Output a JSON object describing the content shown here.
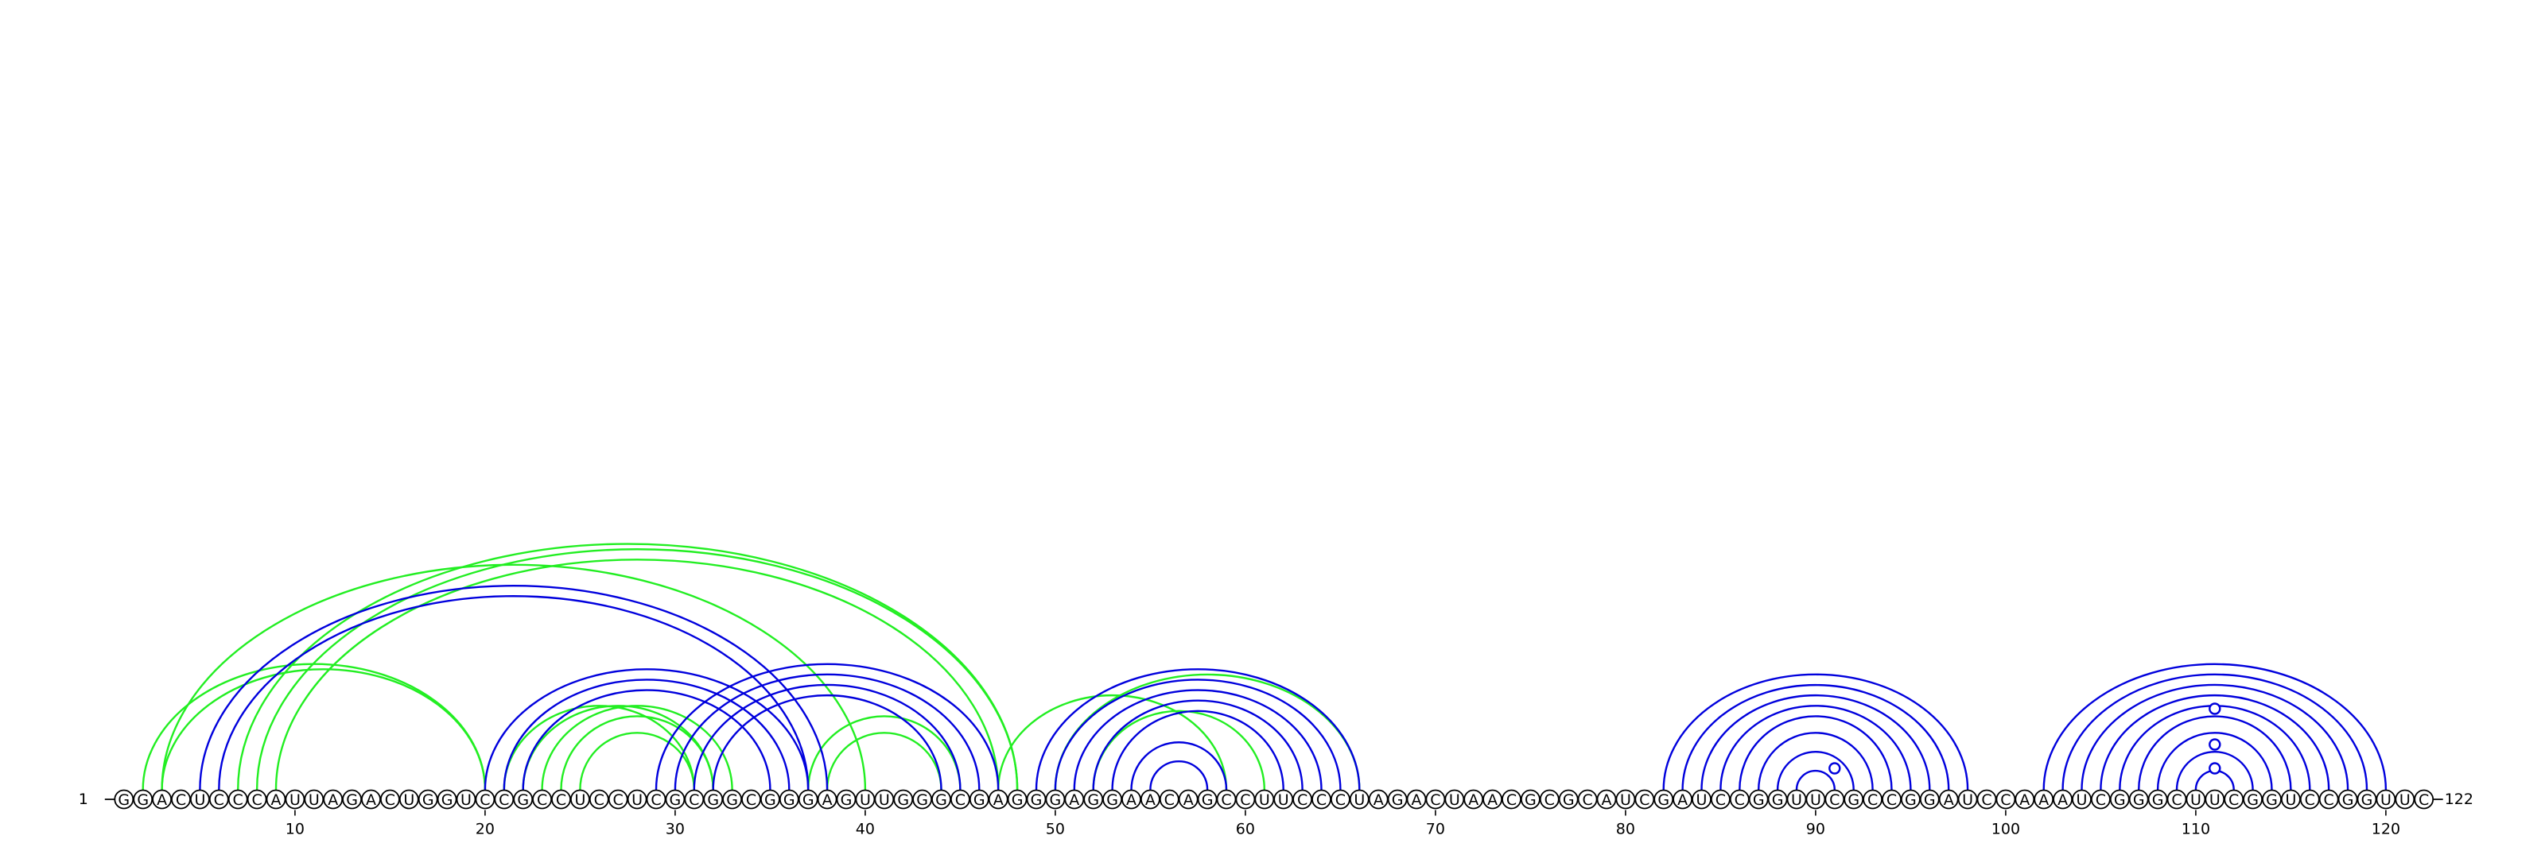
{
  "sequence": "GGACUCCCAUUAGACUGGUCCGCCUCCUCGCGGCGGGAGUUGGGCGAGGGAGGAACAGCCUUCCCUAGACUAACGCGCAUCGAUCCGGUUCGCCGGAUCCAAAUCGGGCUUCGGUCCGGUUC",
  "start_label": "1",
  "end_label": "122",
  "colors": {
    "blue": "#0000dd",
    "green": "#22ee22",
    "marker_blue": "#0000dd"
  },
  "chart_data": {
    "type": "arc",
    "x_ticks": [
      10,
      20,
      30,
      40,
      50,
      60,
      70,
      80,
      90,
      100,
      110,
      120
    ],
    "arcs_blue": [
      [
        5,
        38
      ],
      [
        6,
        37
      ],
      [
        20,
        37
      ],
      [
        21,
        36
      ],
      [
        22,
        35
      ],
      [
        29,
        47
      ],
      [
        30,
        46
      ],
      [
        31,
        45
      ],
      [
        32,
        44
      ],
      [
        49,
        66
      ],
      [
        50,
        65
      ],
      [
        51,
        64
      ],
      [
        52,
        63
      ],
      [
        53,
        62
      ],
      [
        54,
        59
      ],
      [
        55,
        58
      ],
      [
        82,
        98
      ],
      [
        83,
        97
      ],
      [
        84,
        96
      ],
      [
        85,
        95
      ],
      [
        86,
        94
      ],
      [
        87,
        93
      ],
      [
        88,
        92
      ],
      [
        89,
        91
      ],
      [
        102,
        120
      ],
      [
        103,
        119
      ],
      [
        104,
        118
      ],
      [
        105,
        117
      ],
      [
        106,
        116
      ],
      [
        107,
        115
      ],
      [
        108,
        114
      ],
      [
        109,
        113
      ],
      [
        110,
        112
      ]
    ],
    "arcs_green": [
      [
        2,
        20
      ],
      [
        3,
        20
      ],
      [
        3,
        40
      ],
      [
        7,
        48
      ],
      [
        8,
        48
      ],
      [
        9,
        47
      ],
      [
        21,
        31
      ],
      [
        22,
        32
      ],
      [
        23,
        33
      ],
      [
        24,
        32
      ],
      [
        25,
        31
      ],
      [
        37,
        45
      ],
      [
        38,
        44
      ],
      [
        47,
        59
      ],
      [
        50,
        66
      ],
      [
        52,
        61
      ]
    ],
    "markers": [
      {
        "pos": 91,
        "level": 1
      },
      {
        "pos": 111,
        "level": 1
      },
      {
        "pos": 111,
        "level": 3
      },
      {
        "pos": 111,
        "level": 6
      }
    ]
  }
}
